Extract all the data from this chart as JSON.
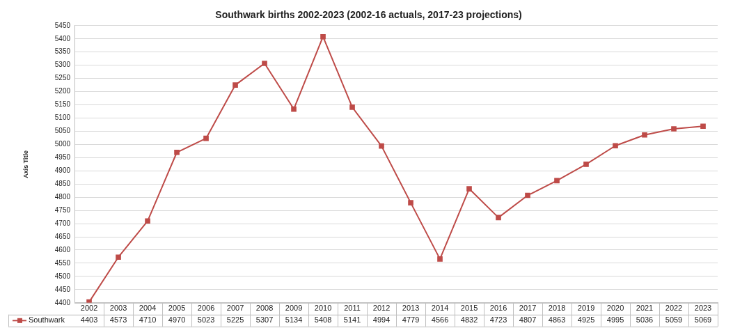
{
  "chart_data": {
    "type": "line",
    "title": "Southwark births 2002-2023 (2002-16 actuals, 2017-23 projections)",
    "ylabel": "Axis Title",
    "categories": [
      "2002",
      "2003",
      "2004",
      "2005",
      "2006",
      "2007",
      "2008",
      "2009",
      "2010",
      "2011",
      "2012",
      "2013",
      "2014",
      "2015",
      "2016",
      "2017",
      "2018",
      "2019",
      "2020",
      "2021",
      "2022",
      "2023"
    ],
    "series": [
      {
        "name": "Southwark",
        "color": "#be4b48",
        "values": [
          4403,
          4573,
          4710,
          4970,
          5023,
          5225,
          5307,
          5134,
          5408,
          5141,
          4994,
          4779,
          4566,
          4832,
          4723,
          4807,
          4863,
          4925,
          4995,
          5036,
          5059,
          5069
        ]
      }
    ],
    "ylim": [
      4400,
      5450
    ],
    "yticks": [
      4400,
      4450,
      4500,
      4550,
      4600,
      4650,
      4700,
      4750,
      4800,
      4850,
      4900,
      4950,
      5000,
      5050,
      5100,
      5150,
      5200,
      5250,
      5300,
      5350,
      5400,
      5450
    ],
    "grid": "y",
    "legend": "bottom",
    "marker": "square",
    "line_style": "solid",
    "data_labels": true
  }
}
